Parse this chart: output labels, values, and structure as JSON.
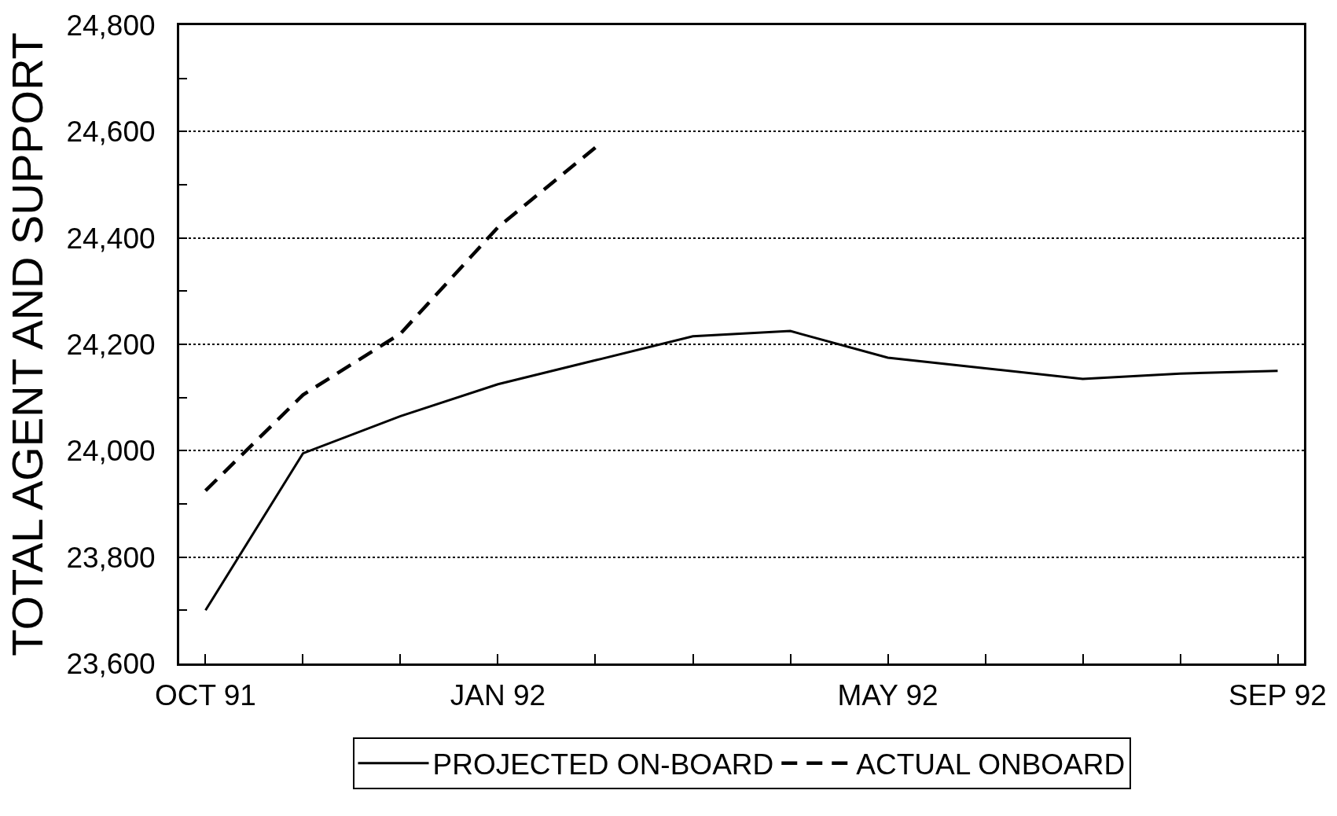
{
  "chart_data": {
    "type": "line",
    "ylabel": "TOTAL AGENT AND SUPPORT",
    "categories": [
      "OCT 91",
      null,
      null,
      "JAN 92",
      null,
      null,
      null,
      "MAY 92",
      null,
      null,
      null,
      "SEP 92"
    ],
    "series": [
      {
        "name": "PROJECTED ON-BOARD",
        "color": "#000000",
        "line_style": "solid",
        "values": [
          23700,
          23995,
          24065,
          24125,
          24170,
          24215,
          24225,
          24175,
          24155,
          24135,
          24145,
          24150
        ]
      },
      {
        "name": "ACTUAL ONBOARD",
        "color": "#000000",
        "line_style": "dashed",
        "values": [
          23925,
          24105,
          24220,
          24420,
          24570,
          null,
          null,
          null,
          null,
          null,
          null,
          null
        ]
      }
    ],
    "ylim": [
      23600,
      24800
    ],
    "yticks": [
      {
        "value": 23600,
        "label": "23,600"
      },
      {
        "value": 23700,
        "label": null
      },
      {
        "value": 23800,
        "label": "23,800"
      },
      {
        "value": 23900,
        "label": null
      },
      {
        "value": 24000,
        "label": "24,000"
      },
      {
        "value": 24100,
        "label": null
      },
      {
        "value": 24200,
        "label": "24,200"
      },
      {
        "value": 24300,
        "label": null
      },
      {
        "value": 24400,
        "label": "24,400"
      },
      {
        "value": 24500,
        "label": null
      },
      {
        "value": 24600,
        "label": "24,600"
      },
      {
        "value": 24700,
        "label": null
      },
      {
        "value": 24800,
        "label": "24,800"
      }
    ],
    "grid": "y",
    "legend": "bottom"
  }
}
